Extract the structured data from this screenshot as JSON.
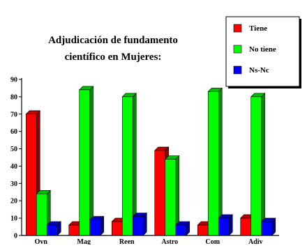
{
  "chart_data": {
    "type": "bar",
    "title_lines": [
      "Adjudicación de fundamento",
      "científico en Mujeres:"
    ],
    "categories": [
      "Ovn",
      "Mag",
      "Reen",
      "Astro",
      "Com",
      "Adiv"
    ],
    "series": [
      {
        "name": "Tiene",
        "color": "#ff0000",
        "values": [
          70,
          6,
          8,
          49,
          6,
          10
        ]
      },
      {
        "name": "No tiene",
        "color": "#00ff00",
        "values": [
          24,
          84,
          80,
          44,
          83,
          80
        ]
      },
      {
        "name": "Ns-Nc",
        "color": "#0000ff",
        "values": [
          6,
          9,
          11,
          6,
          10,
          8
        ]
      }
    ],
    "ylim": [
      0,
      90
    ],
    "yticks": [
      0,
      10,
      20,
      30,
      40,
      50,
      60,
      70,
      80,
      90
    ],
    "grid": false,
    "legend_position": "top-right",
    "bar_style": "3d"
  }
}
